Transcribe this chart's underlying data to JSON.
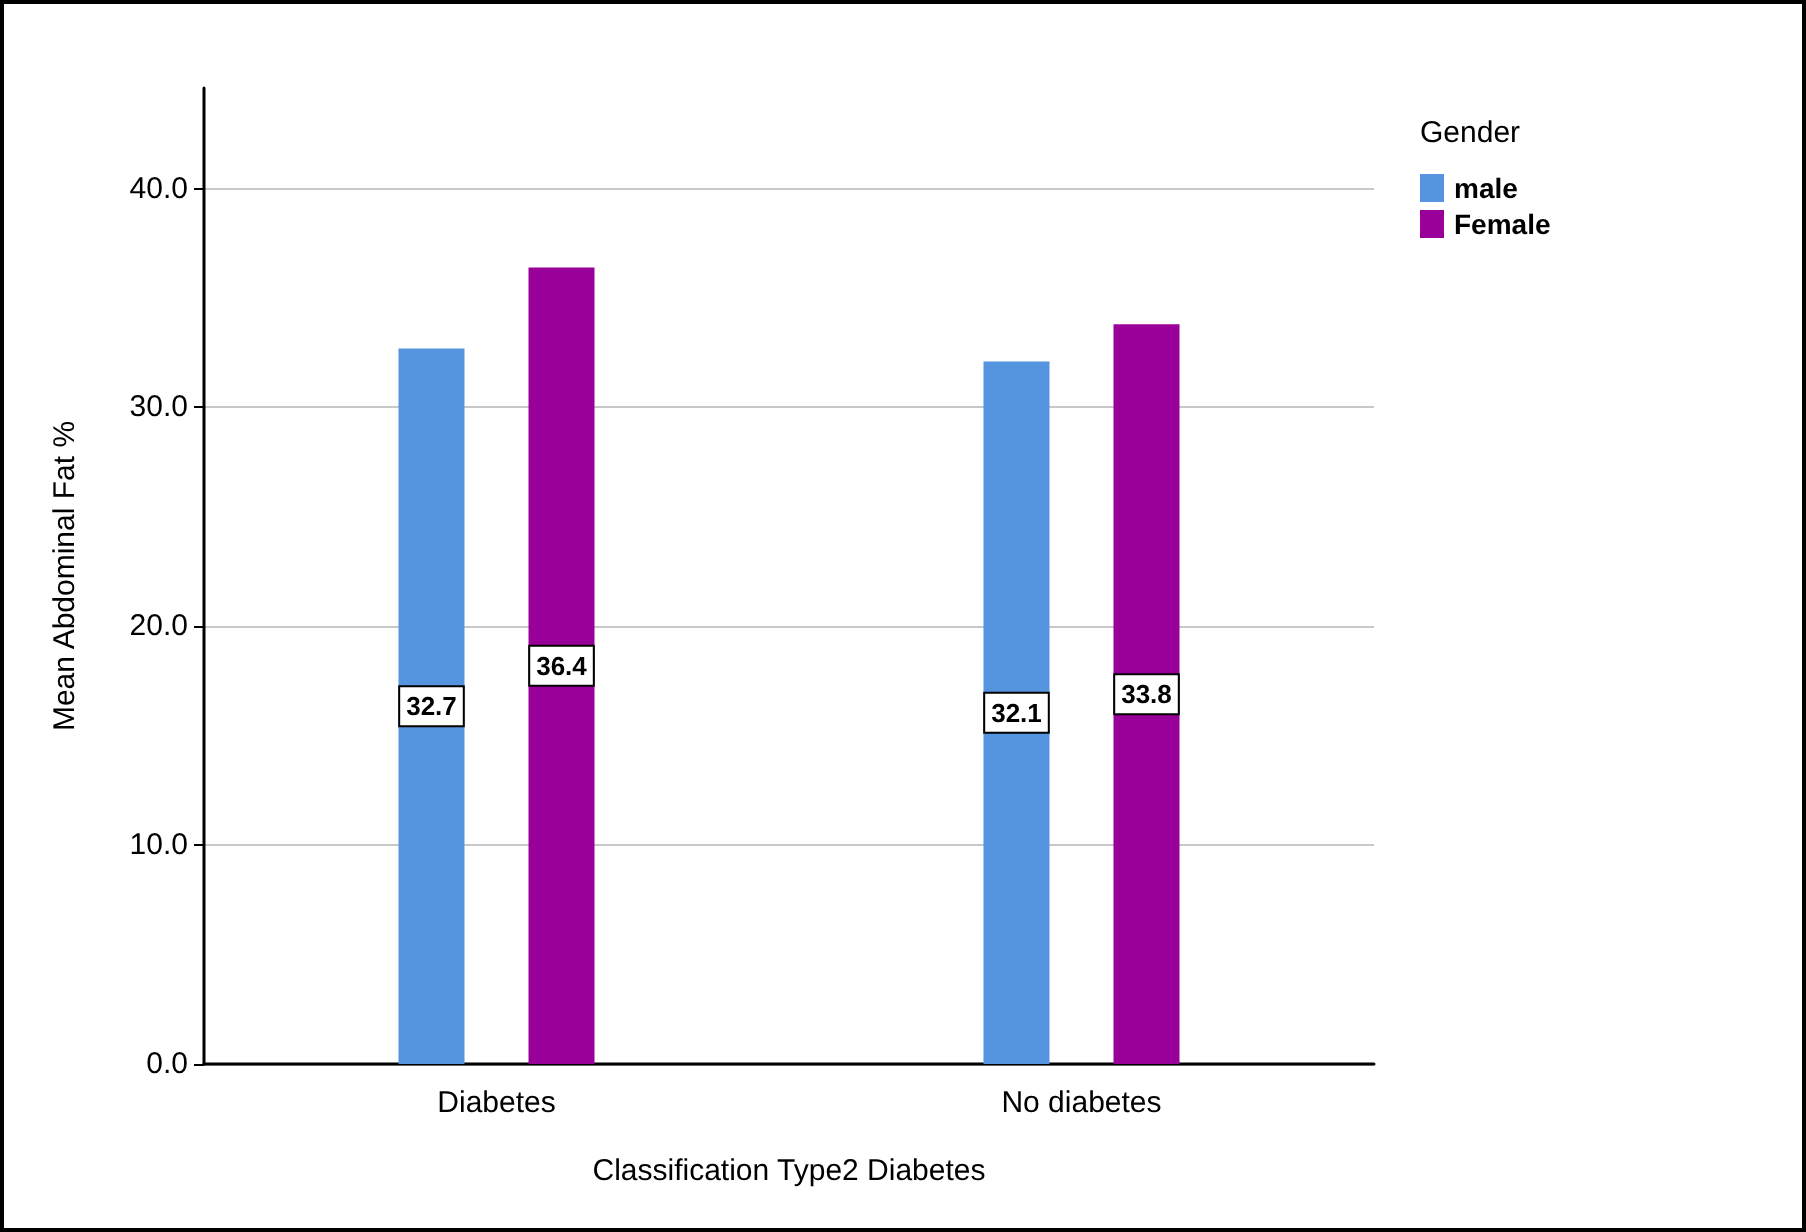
{
  "chart_data": {
    "type": "bar",
    "xlabel": "Classification Type2 Diabetes",
    "ylabel": "Mean Abdominal Fat %",
    "legend_title": "Gender",
    "categories": [
      "Diabetes",
      "No diabetes"
    ],
    "series": [
      {
        "name": "male",
        "color": "#5595e0",
        "values": [
          32.7,
          32.1
        ]
      },
      {
        "name": "Female",
        "color": "#990099",
        "values": [
          36.4,
          33.8
        ]
      }
    ],
    "ylim": [
      0,
      44.6
    ],
    "yticks": [
      {
        "value": 0,
        "label": "0.0"
      },
      {
        "value": 10,
        "label": "10.0"
      },
      {
        "value": 20,
        "label": "20.0"
      },
      {
        "value": 30,
        "label": "30.0"
      },
      {
        "value": 40,
        "label": "40.0"
      }
    ],
    "grid": "y",
    "legend": "top right",
    "data_labels": true
  }
}
